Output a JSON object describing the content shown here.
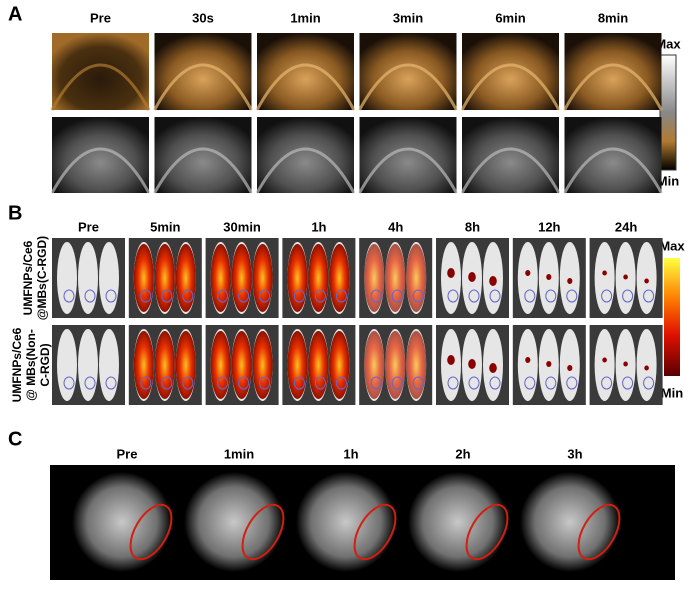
{
  "figure": {
    "panel_a": {
      "label": "A",
      "columns": [
        "Pre",
        "30s",
        "1min",
        "3min",
        "6min",
        "8min"
      ],
      "colorbar": {
        "max": "Max",
        "min": "Min"
      }
    },
    "panel_b": {
      "label": "B",
      "columns": [
        "Pre",
        "5min",
        "30min",
        "1h",
        "4h",
        "8h",
        "12h",
        "24h"
      ],
      "rows": [
        [
          "UMFNPs/Ce6",
          "@MBs(C-RGD)"
        ],
        [
          "UMFNPs/Ce6",
          "@ MBs(Non-",
          "C-RGD)"
        ]
      ],
      "colorbar": {
        "max": "Max",
        "min": "Min"
      }
    },
    "panel_c": {
      "label": "C",
      "columns": [
        "Pre",
        "1min",
        "1h",
        "2h",
        "3h"
      ]
    }
  }
}
